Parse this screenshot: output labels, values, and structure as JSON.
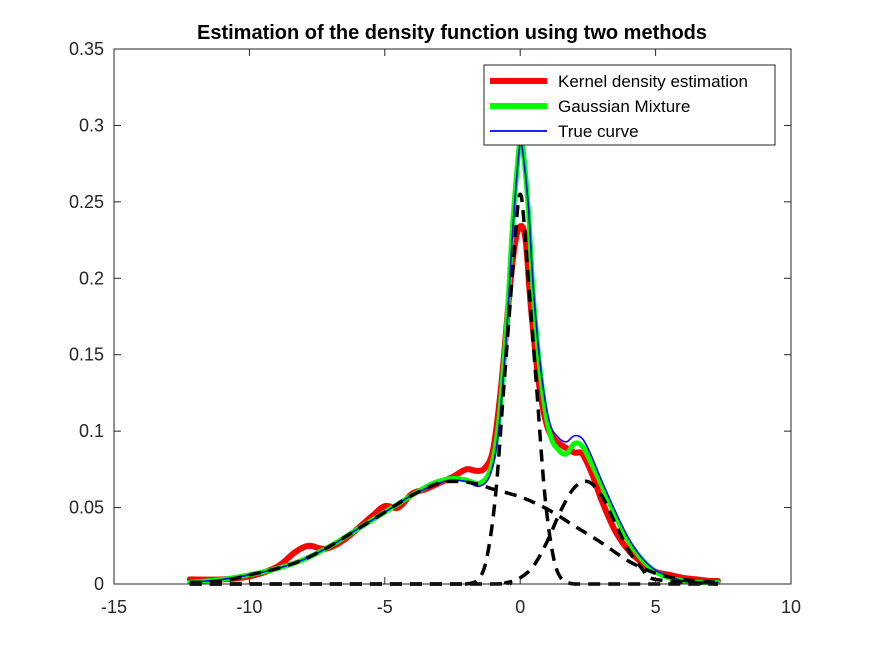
{
  "chart_data": {
    "type": "line",
    "title": "Estimation of the density function using two methods",
    "xlabel": "",
    "ylabel": "",
    "xlim": [
      -15,
      10
    ],
    "ylim": [
      0,
      0.35
    ],
    "x_ticks": [
      -15,
      -10,
      -5,
      0,
      5,
      10
    ],
    "x_tick_labels": [
      "-15",
      "-10",
      "-5",
      "0",
      "5",
      "10"
    ],
    "y_ticks": [
      0,
      0.05,
      0.1,
      0.15,
      0.2,
      0.25,
      0.3,
      0.35
    ],
    "y_tick_labels": [
      "0",
      "0.05",
      "0.1",
      "0.15",
      "0.2",
      "0.25",
      "0.3",
      "0.35"
    ],
    "grid": false,
    "legend_position": "top-right",
    "legend": [
      {
        "label": "Kernel density estimation",
        "color": "#ff0000"
      },
      {
        "label": "Gaussian Mixture",
        "color": "#00ff00"
      },
      {
        "label": "True curve",
        "color": "#0000ff"
      }
    ],
    "series": [
      {
        "name": "Kernel density estimation",
        "color": "#ff0000",
        "style": "solid",
        "x": [
          -12.2,
          -11,
          -10,
          -9,
          -8.3,
          -7.8,
          -7.2,
          -6.5,
          -5.5,
          -5.0,
          -4.5,
          -4.0,
          -3.5,
          -3.0,
          -2.5,
          -2.0,
          -1.6,
          -1.3,
          -1.0,
          -0.7,
          -0.4,
          -0.2,
          0.0,
          0.2,
          0.4,
          0.7,
          1.0,
          1.3,
          1.6,
          2.0,
          2.3,
          2.7,
          3.0,
          3.5,
          4.0,
          4.5,
          5.0,
          5.5,
          6.0,
          6.5,
          7.0,
          7.3
        ],
        "y": [
          0.003,
          0.003,
          0.005,
          0.011,
          0.021,
          0.025,
          0.023,
          0.029,
          0.044,
          0.051,
          0.05,
          0.059,
          0.062,
          0.066,
          0.07,
          0.075,
          0.074,
          0.076,
          0.088,
          0.13,
          0.19,
          0.222,
          0.234,
          0.225,
          0.18,
          0.13,
          0.103,
          0.094,
          0.09,
          0.086,
          0.085,
          0.07,
          0.055,
          0.035,
          0.022,
          0.014,
          0.008,
          0.006,
          0.004,
          0.003,
          0.002,
          0.002
        ]
      },
      {
        "name": "Gaussian Mixture",
        "color": "#00ff00",
        "style": "solid",
        "x": [
          -12.2,
          -11,
          -10,
          -9,
          -8,
          -7,
          -6,
          -5,
          -4,
          -3.2,
          -2.5,
          -2.0,
          -1.5,
          -1.1,
          -0.8,
          -0.5,
          -0.3,
          -0.1,
          0.0,
          0.1,
          0.3,
          0.5,
          0.8,
          1.1,
          1.4,
          1.7,
          2.0,
          2.3,
          2.6,
          3.0,
          3.5,
          4.0,
          4.5,
          5.0,
          5.5,
          6.0,
          6.5,
          7.3
        ],
        "y": [
          0.001,
          0.003,
          0.006,
          0.01,
          0.016,
          0.025,
          0.036,
          0.047,
          0.058,
          0.066,
          0.069,
          0.068,
          0.066,
          0.075,
          0.105,
          0.17,
          0.23,
          0.275,
          0.29,
          0.285,
          0.245,
          0.185,
          0.13,
          0.098,
          0.088,
          0.085,
          0.092,
          0.09,
          0.08,
          0.065,
          0.045,
          0.028,
          0.016,
          0.008,
          0.004,
          0.002,
          0.001,
          0.001
        ]
      },
      {
        "name": "True curve",
        "color": "#0000ff",
        "style": "solid",
        "x": [
          -12.2,
          -11,
          -10,
          -9,
          -8,
          -7,
          -6,
          -5,
          -4,
          -3.0,
          -2.5,
          -2.0,
          -1.5,
          -1.1,
          -0.8,
          -0.5,
          -0.3,
          -0.1,
          0.0,
          0.1,
          0.3,
          0.5,
          0.8,
          1.1,
          1.4,
          1.7,
          2.0,
          2.3,
          2.6,
          3.0,
          3.5,
          4.0,
          4.5,
          5.0,
          5.5,
          6.0,
          6.5,
          7.3
        ],
        "y": [
          0.001,
          0.003,
          0.006,
          0.01,
          0.016,
          0.025,
          0.036,
          0.047,
          0.058,
          0.066,
          0.068,
          0.067,
          0.064,
          0.072,
          0.1,
          0.165,
          0.225,
          0.272,
          0.288,
          0.282,
          0.248,
          0.19,
          0.135,
          0.105,
          0.096,
          0.093,
          0.097,
          0.095,
          0.085,
          0.068,
          0.048,
          0.03,
          0.017,
          0.009,
          0.005,
          0.002,
          0.001,
          0.001
        ]
      },
      {
        "name": "",
        "color": "#000000",
        "style": "dashed",
        "x": [
          -12.2,
          -11,
          -10,
          -9,
          -8,
          -7,
          -6,
          -5,
          -4,
          -3,
          -2.2,
          -1.5,
          -1.0,
          0.0,
          1.0,
          2.0,
          3.0,
          4.0,
          5.0,
          6.0,
          7.3
        ],
        "y": [
          0.001,
          0.002,
          0.006,
          0.01,
          0.016,
          0.025,
          0.036,
          0.047,
          0.058,
          0.066,
          0.067,
          0.065,
          0.062,
          0.057,
          0.049,
          0.038,
          0.027,
          0.015,
          0.007,
          0.003,
          0.001
        ]
      },
      {
        "name": "",
        "color": "#000000",
        "style": "dashed",
        "x": [
          -12.2,
          -3.0,
          -2.0,
          -1.5,
          -1.2,
          -0.9,
          -0.6,
          -0.3,
          -0.1,
          0.0,
          0.1,
          0.3,
          0.6,
          0.9,
          1.2,
          1.5,
          2.0,
          3.0,
          7.3
        ],
        "y": [
          0.0,
          0.0,
          0.0,
          0.004,
          0.02,
          0.06,
          0.13,
          0.2,
          0.245,
          0.255,
          0.245,
          0.2,
          0.13,
          0.06,
          0.02,
          0.004,
          0.0,
          0.0,
          0.0
        ]
      },
      {
        "name": "",
        "color": "#000000",
        "style": "dashed",
        "x": [
          -12.2,
          -1.5,
          -0.5,
          0.0,
          0.5,
          1.0,
          1.5,
          2.0,
          2.5,
          3.0,
          3.5,
          4.0,
          4.5,
          5.0,
          7.3
        ],
        "y": [
          0.0,
          0.0,
          0.001,
          0.004,
          0.012,
          0.028,
          0.048,
          0.063,
          0.067,
          0.058,
          0.04,
          0.022,
          0.01,
          0.003,
          0.0
        ]
      }
    ]
  },
  "colors": {
    "axis": "#262626",
    "background": "#ffffff"
  }
}
